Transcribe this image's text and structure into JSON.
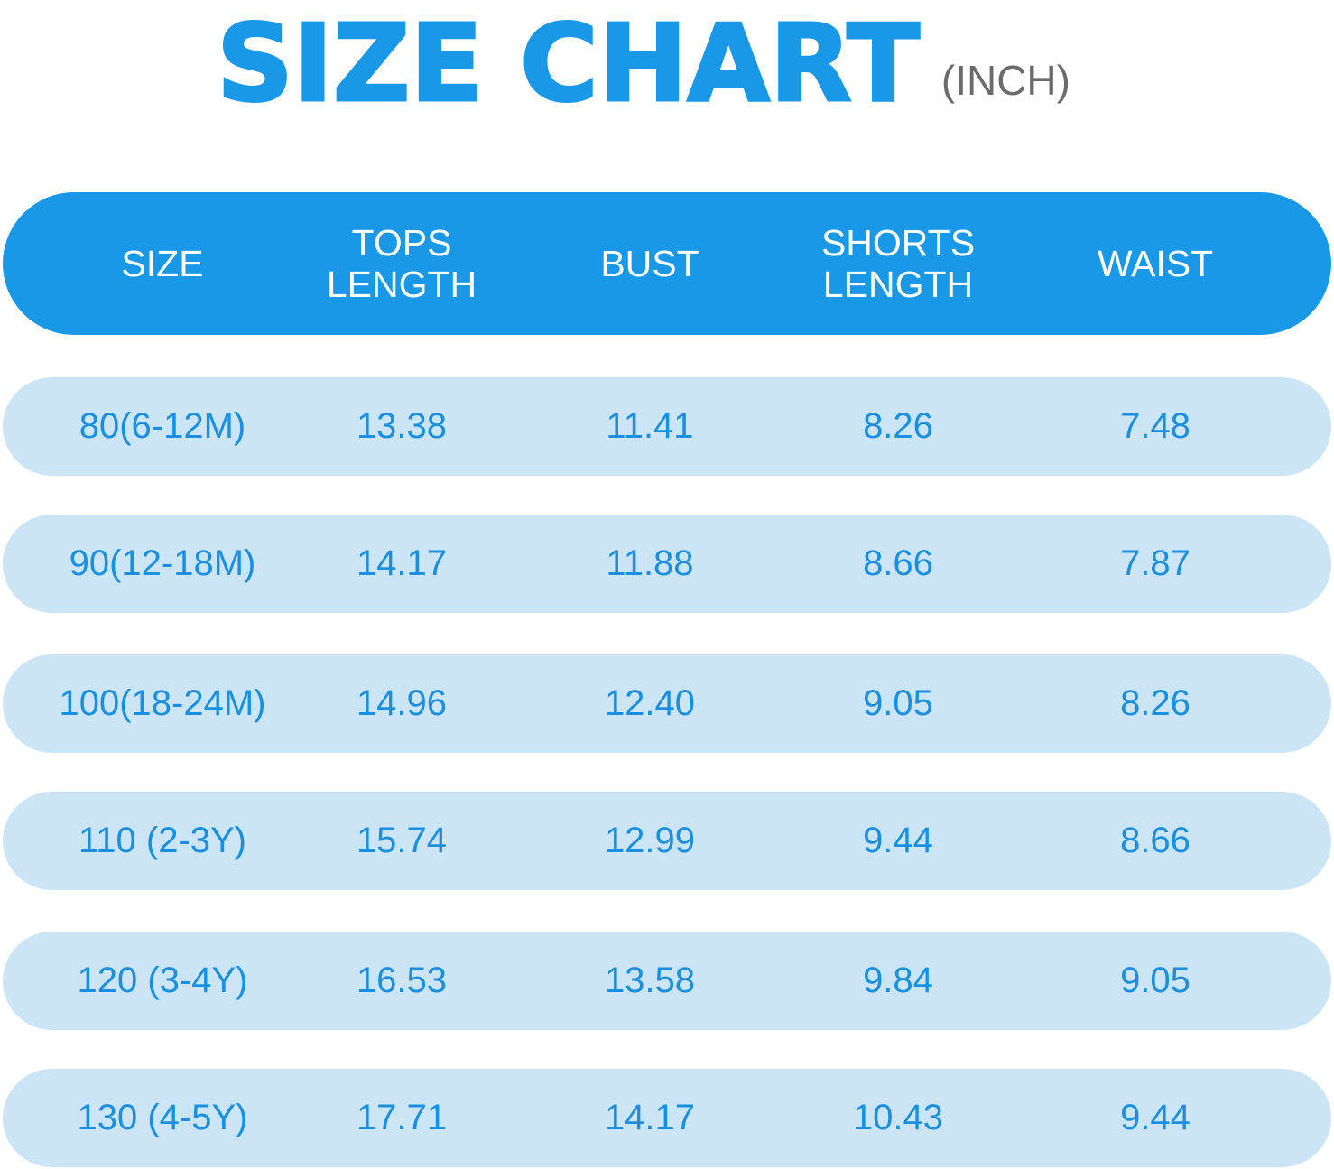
{
  "title": "SIZE CHART",
  "unit": "(INCH)",
  "colors": {
    "header_bg": "#1a98e8",
    "row_bg": "#cbe5f6",
    "text_blue": "#1a8fe0",
    "unit_gray": "#6b6b6b"
  },
  "columns": [
    "SIZE",
    "TOPS\nLENGTH",
    "BUST",
    "SHORTS\nLENGTH",
    "WAIST"
  ],
  "rows": [
    [
      "80(6-12M)",
      "13.38",
      "11.41",
      "8.26",
      "7.48"
    ],
    [
      "90(12-18M)",
      "14.17",
      "11.88",
      "8.66",
      "7.87"
    ],
    [
      "100(18-24M)",
      "14.96",
      "12.40",
      "9.05",
      "8.26"
    ],
    [
      "110 (2-3Y)",
      "15.74",
      "12.99",
      "9.44",
      "8.66"
    ],
    [
      "120 (3-4Y)",
      "16.53",
      "13.58",
      "9.84",
      "9.05"
    ],
    [
      "130 (4-5Y)",
      "17.71",
      "14.17",
      "10.43",
      "9.44"
    ]
  ]
}
